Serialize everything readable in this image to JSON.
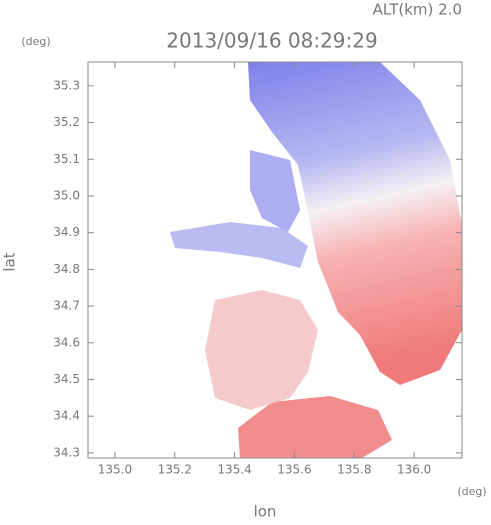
{
  "chart_data": {
    "type": "radar-image",
    "title": "2013/09/16 08:29:29",
    "subtitle": "ALT(km) 2.0",
    "y_unit": "(deg)",
    "x_unit": "(deg)",
    "x_label": "lon",
    "y_label": "lat",
    "xlim": [
      134.91,
      136.16
    ],
    "ylim": [
      34.286,
      35.365
    ],
    "xticks": [
      {
        "value": 135.0,
        "label": "135.0"
      },
      135.2,
      135.4,
      135.6,
      135.8,
      {
        "value": 136.0,
        "label": "136.0"
      }
    ],
    "yticks": [
      34.3,
      34.4,
      34.5,
      34.6,
      34.7,
      34.8,
      34.9,
      {
        "value": 35.0,
        "label": "35.0"
      },
      35.1,
      35.2,
      35.3
    ]
  }
}
